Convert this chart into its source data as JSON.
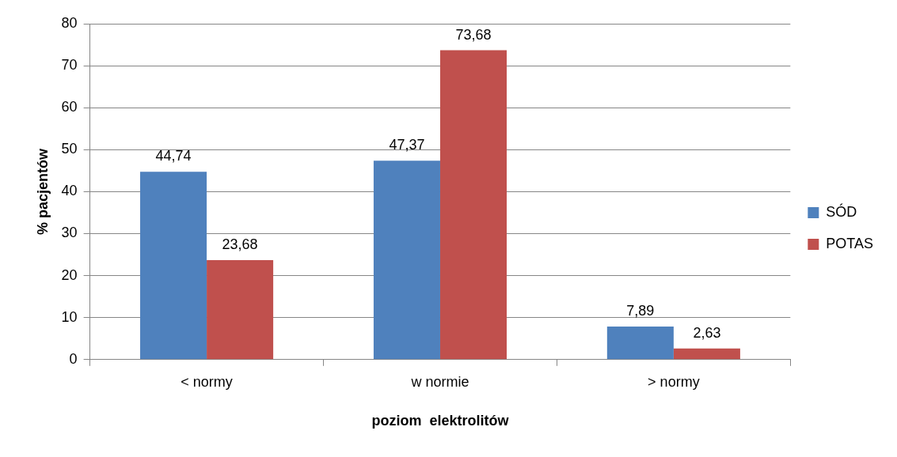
{
  "chart_data": {
    "type": "bar",
    "xlabel": "poziom  elektrolitów",
    "ylabel": "% pacjentów",
    "categories": [
      "< normy",
      "w normie",
      "> normy"
    ],
    "series": [
      {
        "name": "SÓD",
        "color": "#4f81bd",
        "values": [
          44.74,
          47.37,
          7.89
        ],
        "value_labels": [
          "44,74",
          "47,37",
          "7,89"
        ]
      },
      {
        "name": "POTAS",
        "color": "#c0504d",
        "values": [
          23.68,
          73.68,
          2.63
        ],
        "value_labels": [
          "23,68",
          "73,68",
          "2,63"
        ]
      }
    ],
    "ylim": [
      0,
      80
    ],
    "yticks": [
      0,
      10,
      20,
      30,
      40,
      50,
      60,
      70,
      80
    ],
    "grid": "y",
    "legend": "right"
  }
}
